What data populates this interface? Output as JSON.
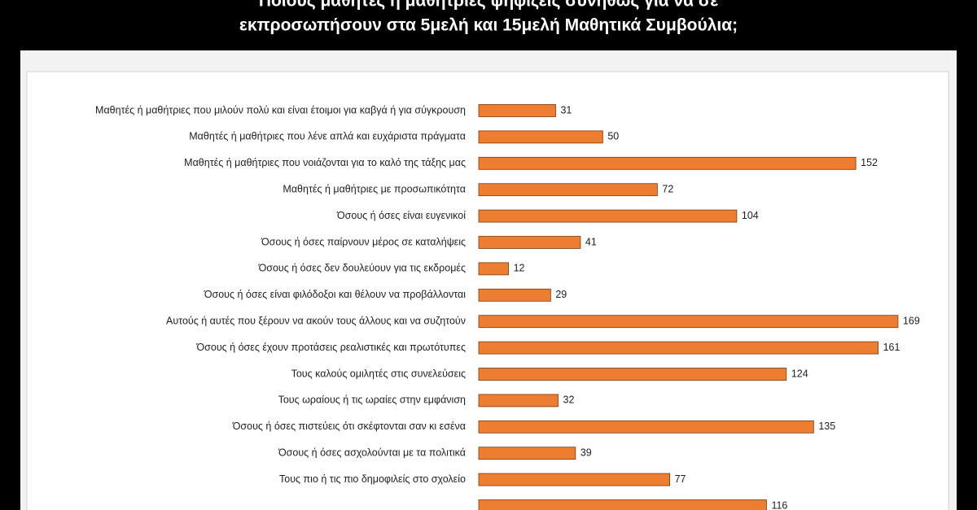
{
  "chart_data": {
    "type": "bar",
    "orientation": "horizontal",
    "title": [
      "Ποιους μαθητές ή μαθήτριες ψηφίζεις συνήθως για να σε",
      "εκπροσωπήσουν στα 5μελή και 15μελή Μαθητικά Συμβούλια;"
    ],
    "categories": [
      "Μαθητές ή μαθήτριες που μιλούν πολύ και είναι έτοιμοι για καβγά ή για σύγκρουση",
      "Μαθητές ή μαθήτριες που λένε απλά και ευχάριστα πράγματα",
      "Μαθητές ή μαθήτριες που νοιάζονται για το καλό της τάξης μας",
      "Μαθητές ή μαθήτριες με προσωπικότητα",
      "Όσους ή όσες είναι ευγενικοί",
      "Όσους ή όσες παίρνουν μέρος σε καταλήψεις",
      "Όσους ή όσες δεν δουλεύουν για τις εκδρομές",
      "Όσους ή όσες είναι φιλόδοξοι και θέλουν να προβάλλονται",
      "Αυτούς ή αυτές που ξέρουν να ακούν τους άλλους και να συζητούν",
      "Όσους ή όσες έχουν προτάσεις ρεαλιστικές και πρωτότυπες",
      "Τους καλούς ομιλητές στις συνελεύσεις",
      "Τους ωραίους ή τις ωραίες στην εμφάνιση",
      "Όσους ή όσες πιστεύεις ότι σκέφτονται σαν κι εσένα",
      "Όσους ή όσες ασχολούνται με τα πολιτικά",
      "Τους πιο ή τις πιο δημοφιλείς στο σχολείο",
      null
    ],
    "values": [
      31,
      50,
      152,
      72,
      104,
      41,
      12,
      29,
      169,
      161,
      124,
      32,
      135,
      39,
      77,
      116
    ],
    "color": "#ed7d31"
  }
}
